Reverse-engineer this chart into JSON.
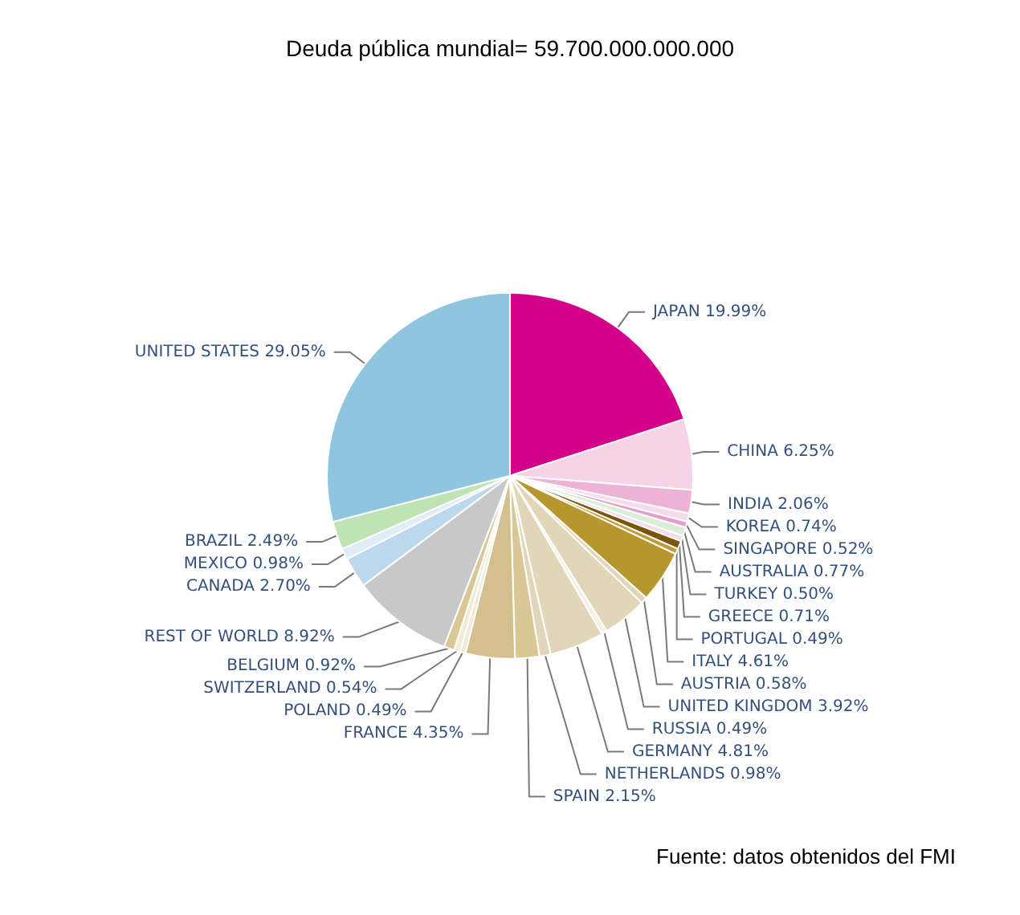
{
  "chart_data": {
    "type": "pie",
    "title": "Deuda pública mundial= 59.700.000.000.000",
    "categories": [
      "JAPAN",
      "CHINA",
      "INDIA",
      "KOREA",
      "SINGAPORE",
      "AUSTRALIA",
      "TURKEY",
      "GREECE",
      "PORTUGAL",
      "ITALY",
      "AUSTRIA",
      "UNITED KINGDOM",
      "RUSSIA",
      "GERMANY",
      "NETHERLANDS",
      "SPAIN",
      "FRANCE",
      "POLAND",
      "SWITZERLAND",
      "BELGIUM",
      "REST OF WORLD",
      "CANADA",
      "MEXICO",
      "BRAZIL",
      "UNITED STATES"
    ],
    "values": [
      19.99,
      6.25,
      2.06,
      0.74,
      0.52,
      0.77,
      0.5,
      0.71,
      0.49,
      4.61,
      0.58,
      3.92,
      0.49,
      4.81,
      0.98,
      2.15,
      4.35,
      0.49,
      0.54,
      0.92,
      8.92,
      2.7,
      0.98,
      2.49,
      29.05
    ],
    "value_labels": [
      "19.99%",
      "6.25%",
      "2.06%",
      "0.74%",
      "0.52%",
      "0.77%",
      "0.50%",
      "0.71%",
      "0.49%",
      "4.61%",
      "0.58%",
      "3.92%",
      "0.49%",
      "4.81%",
      "0.98%",
      "2.15%",
      "4.35%",
      "0.49%",
      "0.54%",
      "0.92%",
      "8.92%",
      "2.70%",
      "0.98%",
      "2.49%",
      "29.05%"
    ],
    "colors": [
      "#d4008a",
      "#f6d3e6",
      "#ecb3d6",
      "#f6dcea",
      "#e69ccc",
      "#d7efd4",
      "#f6dcea",
      "#7a5608",
      "#c29a3a",
      "#b8962e",
      "#e2d6b8",
      "#e2d6b8",
      "#f4f0e4",
      "#e2d6b8",
      "#e2d6b8",
      "#d9c796",
      "#d4c08e",
      "#f0ead8",
      "#f0ead8",
      "#d9c796",
      "#c8c8c8",
      "#bcd8ec",
      "#e0ecf6",
      "#bfe3b2",
      "#8ec6e0"
    ],
    "annotations": [
      "Fuente: datos obtenidos del FMI"
    ]
  }
}
